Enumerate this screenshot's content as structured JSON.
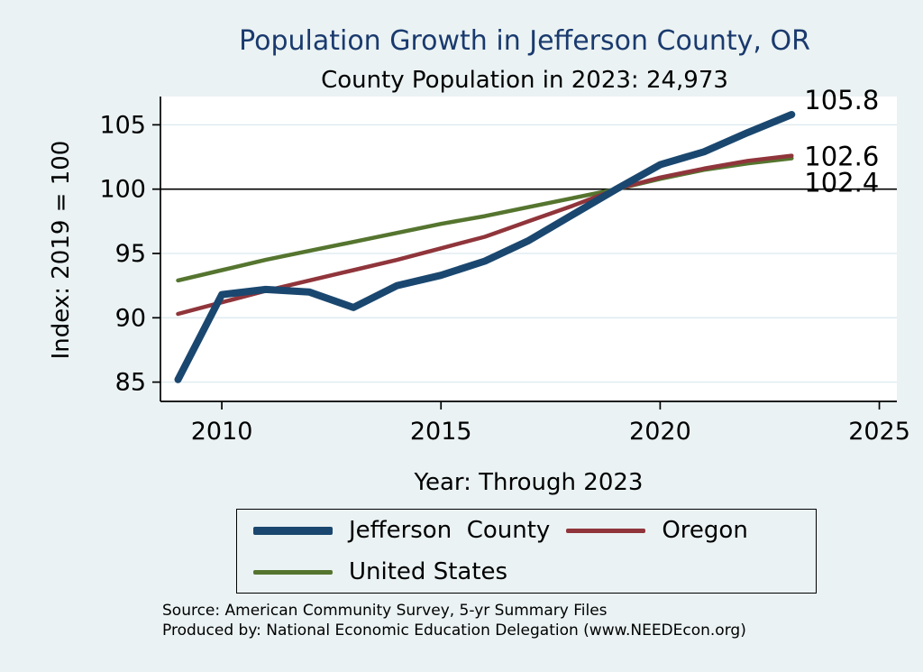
{
  "title": "Population Growth in Jefferson County, OR",
  "subtitle": "County Population in 2023: 24,973",
  "colors": {
    "background": "#eaf2f3",
    "plot_background": "#ffffff",
    "title": "#1a3a6e",
    "reference_line": "#000000",
    "jefferson_county": "#1a476f",
    "oregon": "#90353b",
    "united_states": "#55752f"
  },
  "chart_data": {
    "type": "line",
    "title": "Population Growth in Jefferson County, OR",
    "subtitle": "County Population in 2023: 24,973",
    "ylabel": "Index: 2019 = 100",
    "xlabel": "Year: Through 2023",
    "x": [
      2009,
      2010,
      2011,
      2012,
      2013,
      2014,
      2015,
      2016,
      2017,
      2018,
      2019,
      2020,
      2021,
      2022,
      2023
    ],
    "series": [
      {
        "name": "Jefferson  County",
        "color": "#1a476f",
        "width": 8,
        "end_label": "105.8",
        "values": [
          85.2,
          91.8,
          92.2,
          92.0,
          90.8,
          92.5,
          93.3,
          94.4,
          96.0,
          98.0,
          100.0,
          101.9,
          102.9,
          104.4,
          105.8
        ]
      },
      {
        "name": "Oregon",
        "color": "#90353b",
        "width": 4.5,
        "end_label": "102.6",
        "values": [
          90.3,
          91.2,
          92.1,
          92.9,
          93.7,
          94.5,
          95.4,
          96.3,
          97.5,
          98.7,
          100.0,
          100.9,
          101.6,
          102.2,
          102.6
        ]
      },
      {
        "name": "United States",
        "color": "#55752f",
        "width": 4.5,
        "end_label": "102.4",
        "values": [
          92.9,
          93.7,
          94.5,
          95.2,
          95.9,
          96.6,
          97.3,
          97.9,
          98.6,
          99.3,
          100.0,
          100.8,
          101.5,
          102.0,
          102.4
        ]
      }
    ],
    "yticks": [
      85,
      90,
      95,
      100,
      105
    ],
    "xticks": [
      2010,
      2015,
      2020,
      2025
    ],
    "ref_line": 100,
    "xlim": [
      2008.6,
      2025.4
    ],
    "ylim": [
      83.5,
      107.2
    ],
    "grid": true,
    "legend_position": "bottom"
  },
  "footer": {
    "source": "Source: American Community Survey, 5-yr Summary Files",
    "produced_by": "Produced by: National Economic Education Delegation (www.NEEDEcon.org)"
  }
}
